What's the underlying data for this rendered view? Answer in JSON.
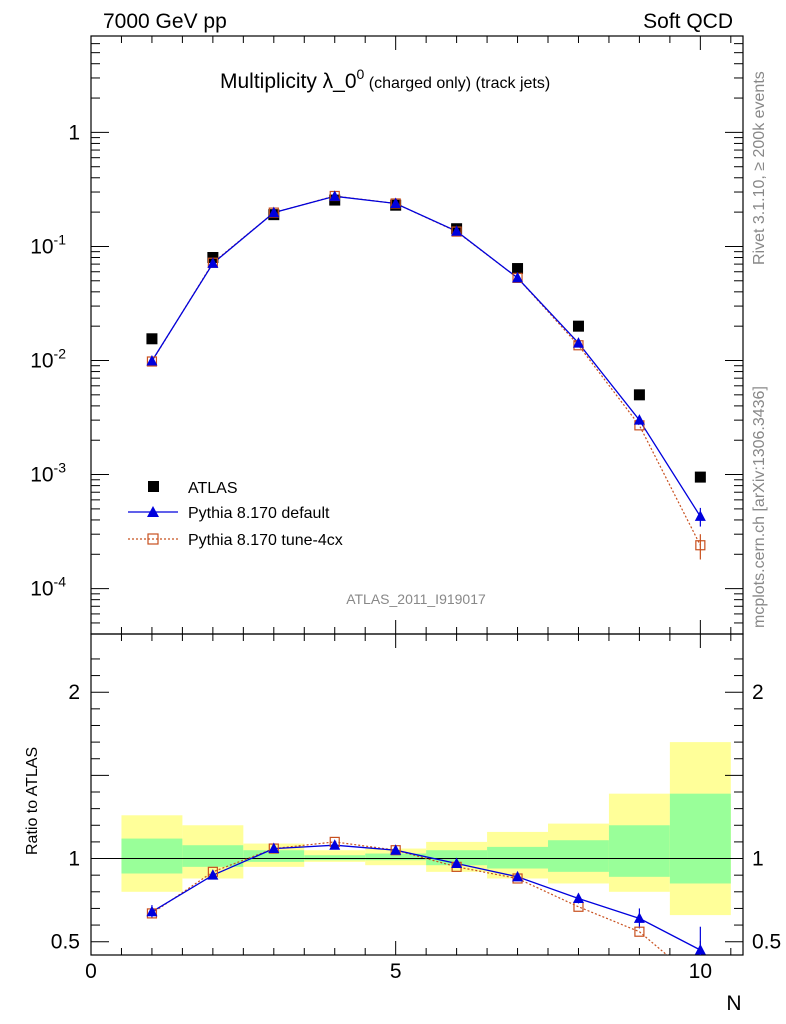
{
  "header": {
    "energy": "7000 GeV pp",
    "process": "Soft QCD"
  },
  "side": {
    "rivet": "Rivet 3.1.10, ≥ 200k events",
    "source": "mcplots.cern.ch [arXiv:1306.3436]"
  },
  "title": {
    "main": "Multiplicity λ_0",
    "sup": "0",
    "small": " (charged only) (track jets)"
  },
  "analysis_id": "ATLAS_2011_I919017",
  "axes": {
    "xlabel": "N",
    "ratio_ylabel": "Ratio to ATLAS",
    "x_ticks": [
      "0",
      "5",
      "10"
    ],
    "y_ticks_main": [
      "1",
      "10^-1",
      "10^-2",
      "10^-3",
      "10^-4"
    ],
    "y_ticks_ratio": [
      "2",
      "1",
      "0.5"
    ]
  },
  "legend": {
    "atlas": "ATLAS",
    "default": "Pythia 8.170 default",
    "tune": "Pythia 8.170 tune-4cx"
  },
  "colors": {
    "atlas": "#000000",
    "default": "#0000dd",
    "tune": "#c8501e",
    "band_inner": "#99ff99",
    "band_outer": "#ffff99"
  },
  "chart_data": [
    {
      "type": "scatter",
      "scale": "log",
      "xlim": [
        0,
        10.7
      ],
      "ylim": [
        4e-05,
        7
      ],
      "x": [
        1,
        2,
        3,
        4,
        5,
        6,
        7,
        8,
        9,
        10
      ],
      "series": [
        {
          "name": "ATLAS",
          "values": [
            0.0155,
            0.08,
            0.19,
            0.255,
            0.23,
            0.143,
            0.064,
            0.02,
            0.005,
            0.00095
          ]
        },
        {
          "name": "Pythia 8.170 default",
          "values": [
            0.0099,
            0.071,
            0.198,
            0.275,
            0.238,
            0.136,
            0.053,
            0.0142,
            0.003,
            0.00043
          ],
          "errors": [
            0,
            0,
            0,
            0,
            0,
            0,
            0,
            0,
            0,
            8e-05
          ]
        },
        {
          "name": "Pythia 8.170 tune-4cx",
          "values": [
            0.0098,
            0.072,
            0.198,
            0.277,
            0.238,
            0.135,
            0.053,
            0.0136,
            0.0027,
            0.00024
          ],
          "errors": [
            0,
            0,
            0,
            0,
            0,
            0,
            0,
            0,
            0,
            6e-05
          ]
        }
      ]
    },
    {
      "type": "line",
      "ylim": [
        0.42,
        2.35
      ],
      "ylabel": "Ratio to ATLAS",
      "x": [
        1,
        2,
        3,
        4,
        5,
        6,
        7,
        8,
        9,
        10
      ],
      "bands": {
        "edges": [
          0.5,
          1.5,
          2.5,
          3.5,
          4.5,
          5.5,
          6.5,
          7.5,
          8.5,
          9.5,
          10.5
        ],
        "inner_low": [
          0.91,
          0.95,
          0.98,
          0.99,
          0.99,
          0.96,
          0.94,
          0.92,
          0.89,
          0.85
        ],
        "inner_high": [
          1.12,
          1.08,
          1.05,
          1.02,
          1.03,
          1.05,
          1.07,
          1.11,
          1.2,
          1.39
        ],
        "outer_low": [
          0.8,
          0.88,
          0.95,
          0.98,
          0.96,
          0.92,
          0.88,
          0.85,
          0.8,
          0.66
        ],
        "outer_high": [
          1.26,
          1.2,
          1.09,
          1.05,
          1.06,
          1.1,
          1.16,
          1.21,
          1.39,
          1.7
        ]
      },
      "series": [
        {
          "name": "Pythia 8.170 default",
          "values": [
            0.68,
            0.9,
            1.06,
            1.08,
            1.05,
            0.97,
            0.89,
            0.76,
            0.64,
            0.45
          ],
          "errors": [
            0.04,
            0.01,
            0.01,
            0.01,
            0.01,
            0.01,
            0.01,
            0.03,
            0.06,
            0.14
          ]
        },
        {
          "name": "Pythia 8.170 tune-4cx",
          "values": [
            0.67,
            0.92,
            1.06,
            1.1,
            1.05,
            0.95,
            0.88,
            0.71,
            0.56,
            0.25
          ]
        }
      ]
    }
  ]
}
